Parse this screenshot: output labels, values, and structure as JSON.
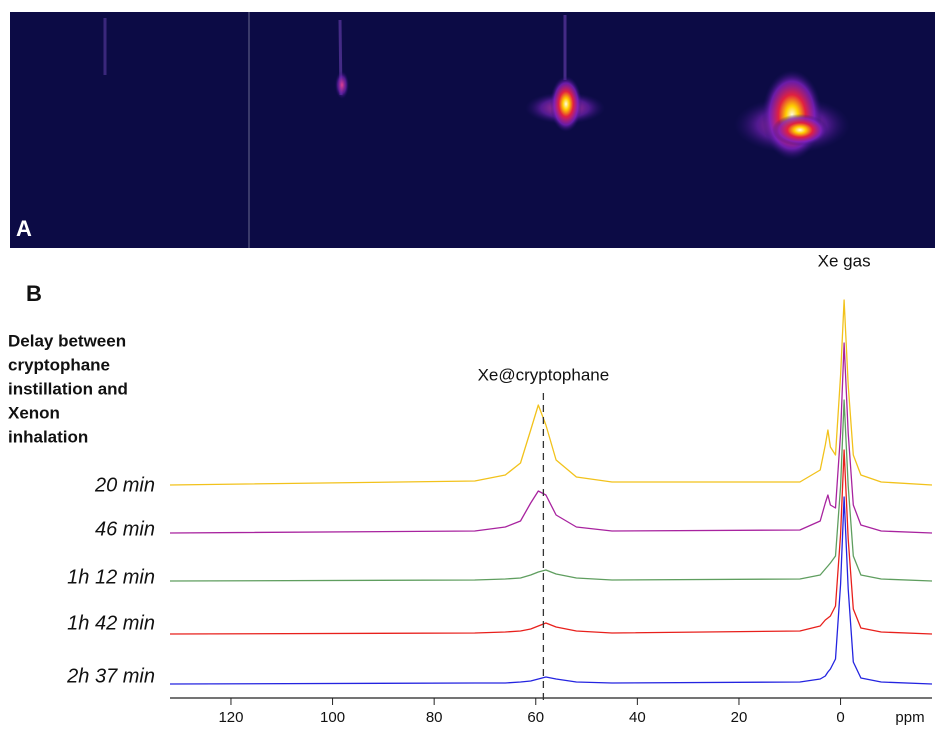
{
  "image_panel": {
    "label": "A"
  },
  "chart_data": {
    "type": "line",
    "panel_label": "B",
    "legend_title": [
      "Delay between",
      "cryptophane",
      "instillation and",
      "Xenon",
      "inhalation"
    ],
    "x_label": "ppm",
    "xlim": [
      132,
      -18
    ],
    "xticks": [
      120,
      100,
      80,
      60,
      40,
      20,
      0
    ],
    "annotations": [
      {
        "text": "Xe@cryptophane",
        "x": 58.5
      },
      {
        "text": "Xe gas",
        "x": -0.7
      }
    ],
    "x": [
      132,
      72,
      66,
      63,
      61,
      59.5,
      58,
      56,
      52,
      45,
      8,
      4,
      3,
      2.5,
      2,
      1,
      0,
      -0.7,
      -1.5,
      -2.5,
      -4,
      -8,
      -18
    ],
    "series": [
      {
        "name": "20 min",
        "color": "#f2c21b",
        "values": [
          0,
          4,
          10,
          22,
          55,
          80,
          60,
          25,
          8,
          3,
          3,
          15,
          40,
          55,
          38,
          30,
          110,
          185,
          100,
          30,
          10,
          3,
          0
        ]
      },
      {
        "name": "46 min",
        "color": "#a8239f",
        "values": [
          0,
          2,
          6,
          12,
          30,
          42,
          38,
          18,
          6,
          2,
          3,
          12,
          30,
          38,
          28,
          25,
          100,
          190,
          100,
          28,
          8,
          2,
          0
        ]
      },
      {
        "name": "1h 12 min",
        "color": "#5f9e5f",
        "values": [
          0,
          1,
          2,
          3,
          6,
          9,
          11,
          7,
          3,
          1,
          2,
          6,
          12,
          15,
          18,
          25,
          95,
          181,
          95,
          25,
          6,
          2,
          0
        ]
      },
      {
        "name": "1h 42 min",
        "color": "#e8201c",
        "values": [
          0,
          1,
          2,
          3,
          5,
          8,
          11,
          7,
          3,
          1,
          3,
          8,
          14,
          16,
          18,
          28,
          100,
          184,
          95,
          25,
          6,
          2,
          0
        ]
      },
      {
        "name": "2h 37 min",
        "color": "#2424e0",
        "values": [
          0,
          1,
          1,
          2,
          3,
          5,
          7,
          5,
          2,
          1,
          2,
          5,
          8,
          12,
          15,
          25,
          100,
          187,
          95,
          22,
          6,
          2,
          0
        ]
      }
    ]
  }
}
